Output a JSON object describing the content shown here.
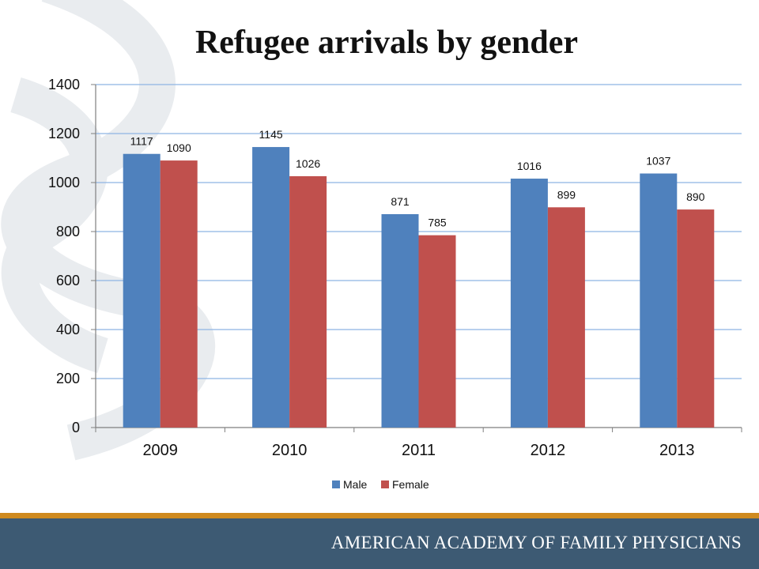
{
  "slide": {
    "title": "Refugee arrivals by gender",
    "footer": "AMERICAN ACADEMY OF FAMILY PHYSICIANS"
  },
  "colors": {
    "male": "#4f81bd",
    "female": "#c0504d",
    "gridline": "#8eb4e3",
    "footer_band": "#3d5a73",
    "footer_rule": "#cf8a1f"
  },
  "chart_data": {
    "type": "bar",
    "title": "Refugee arrivals by gender",
    "categories": [
      "2009",
      "2010",
      "2011",
      "2012",
      "2013"
    ],
    "series": [
      {
        "name": "Male",
        "values": [
          1117,
          1145,
          871,
          1016,
          1037
        ]
      },
      {
        "name": "Female",
        "values": [
          1090,
          1026,
          785,
          899,
          890
        ]
      }
    ],
    "yticks": [
      "0",
      "200",
      "400",
      "600",
      "800",
      "1000",
      "1200",
      "1400"
    ],
    "ylim": [
      0,
      1400
    ],
    "grid": true,
    "legend": "bottom",
    "xlabel": "",
    "ylabel": ""
  }
}
